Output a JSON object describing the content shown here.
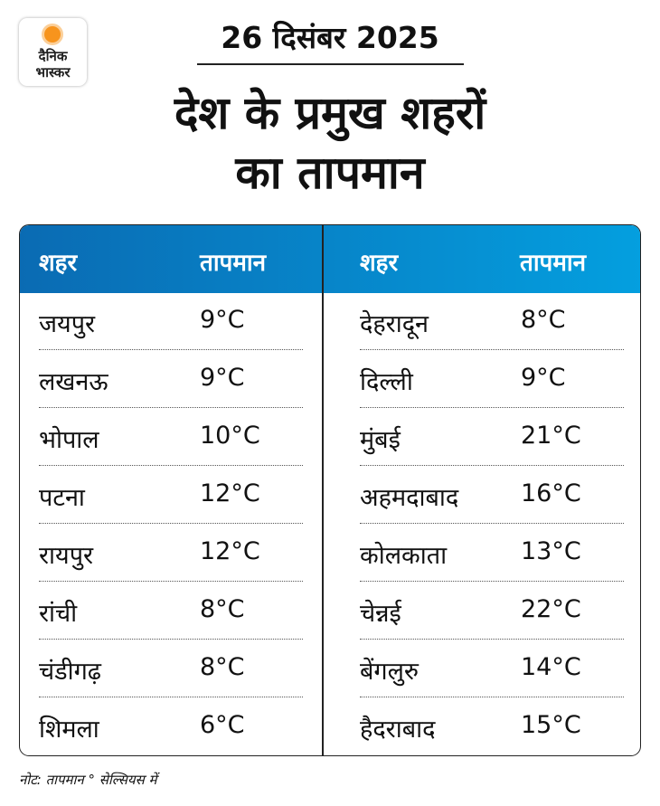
{
  "logo": {
    "line1": "दैनिक",
    "line2": "भास्कर",
    "sun_color": "#f7941d"
  },
  "date": "26 दिसंबर 2025",
  "title": {
    "line1": "देश के प्रमुख शहरों",
    "line2": "का तापमान"
  },
  "table": {
    "header_colors": [
      "#0a6bb3",
      "#049fdf"
    ],
    "headers": {
      "city": "शहर",
      "temp": "तापमान"
    },
    "left": [
      {
        "city": "जयपुर",
        "temp": "9°C"
      },
      {
        "city": "लखनऊ",
        "temp": "9°C"
      },
      {
        "city": "भोपाल",
        "temp": "10°C"
      },
      {
        "city": "पटना",
        "temp": "12°C"
      },
      {
        "city": "रायपुर",
        "temp": "12°C"
      },
      {
        "city": "रांची",
        "temp": "8°C"
      },
      {
        "city": "चंडीगढ़",
        "temp": "8°C"
      },
      {
        "city": "शिमला",
        "temp": "6°C"
      }
    ],
    "right": [
      {
        "city": "देहरादून",
        "temp": "8°C"
      },
      {
        "city": "दिल्ली",
        "temp": "9°C"
      },
      {
        "city": "मुंबई",
        "temp": "21°C"
      },
      {
        "city": "अहमदाबाद",
        "temp": "16°C"
      },
      {
        "city": "कोलकाता",
        "temp": "13°C"
      },
      {
        "city": "चेन्नई",
        "temp": "22°C"
      },
      {
        "city": "बेंगलुरु",
        "temp": "14°C"
      },
      {
        "city": "हैदराबाद",
        "temp": "15°C"
      }
    ]
  },
  "note": "नोट: तापमान  ° सेल्सियस में"
}
